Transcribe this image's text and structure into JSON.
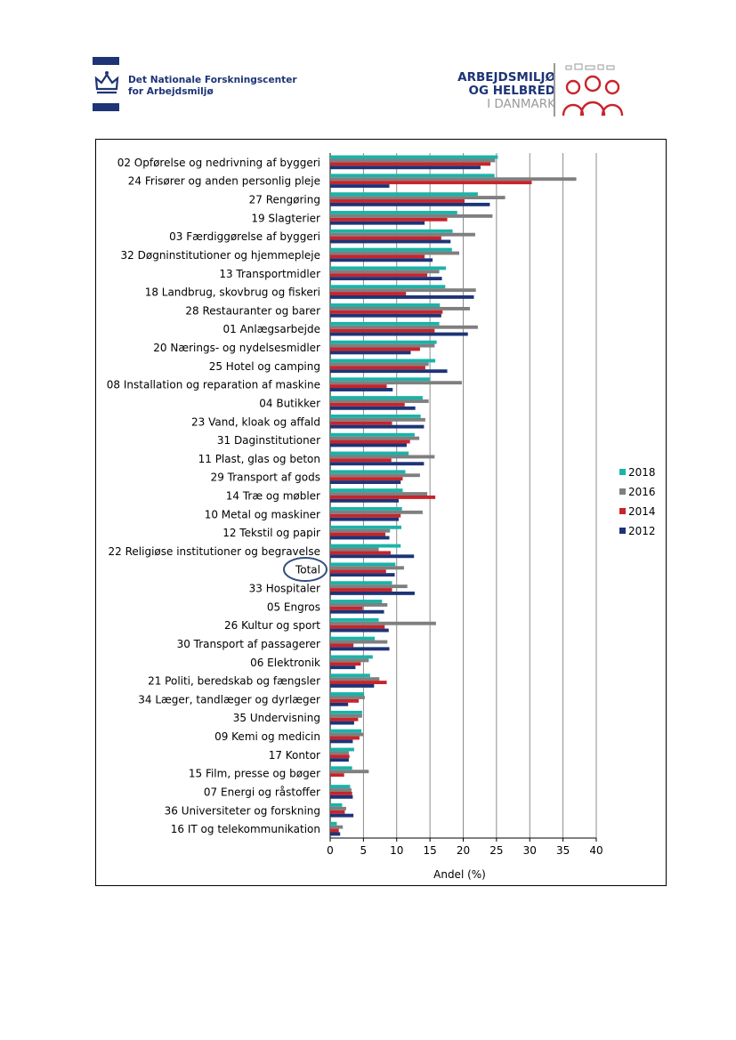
{
  "header": {
    "left_logo": {
      "line1": "Det Nationale Forskningscenter",
      "line2": "for Arbejdsmiljø",
      "stripe_color": "#1d3476"
    },
    "right_logo": {
      "line1": "ARBEJDSMILJØ",
      "line2": "OG HELBRED",
      "line3": "I DANMARK",
      "accent_color": "#c8242b"
    }
  },
  "chart_data": {
    "type": "bar",
    "orientation": "horizontal",
    "xlabel": "Andel (%)",
    "xlim": [
      0,
      40
    ],
    "xticks": [
      0,
      5,
      10,
      15,
      20,
      25,
      30,
      35,
      40
    ],
    "grid": true,
    "legend_position": "right",
    "highlighted_category": "Total",
    "categories": [
      "02 Opførelse og nedrivning af byggeri",
      "24 Frisører og anden personlig pleje",
      "27 Rengøring",
      "19 Slagterier",
      "03 Færdiggørelse af byggeri",
      "32 Døgninstitutioner og hjemmepleje",
      "13 Transportmidler",
      "18 Landbrug, skovbrug og fiskeri",
      "28 Restauranter og barer",
      "01 Anlægsarbejde",
      "20 Nærings- og nydelsesmidler",
      "25 Hotel og camping",
      "08 Installation og reparation af maskine",
      "04 Butikker",
      "23 Vand, kloak og affald",
      "31 Daginstitutioner",
      "11 Plast, glas og beton",
      "29 Transport af gods",
      "14 Træ og møbler",
      "10 Metal og maskiner",
      "12 Tekstil og papir",
      "22 Religiøse institutioner og begravelse",
      "Total",
      "33 Hospitaler",
      "05 Engros",
      "26 Kultur og sport",
      "30 Transport af passagerer",
      "06 Elektronik",
      "21 Politi, beredskab og fængsler",
      "34 Læger, tandlæger og dyrlæger",
      "35 Undervisning",
      "09 Kemi og medicin",
      "17 Kontor",
      "15 Film, presse og bøger",
      "07 Energi og råstoffer",
      "36 Universiteter og forskning",
      "16 IT og telekommunikation"
    ],
    "series": [
      {
        "name": "2018",
        "color": "#1bb3a8",
        "values": [
          25.2,
          24.7,
          22.2,
          19.1,
          18.4,
          18.3,
          17.4,
          17.3,
          16.5,
          16.4,
          16.0,
          15.8,
          15.0,
          13.9,
          13.6,
          12.7,
          11.8,
          11.3,
          10.9,
          10.8,
          10.7,
          10.6,
          9.8,
          9.3,
          7.8,
          7.3,
          6.7,
          6.4,
          6.0,
          5.1,
          4.8,
          4.7,
          3.6,
          3.3,
          3.0,
          1.8,
          1.0
        ]
      },
      {
        "name": "2016",
        "color": "#7f7f7f",
        "values": [
          24.8,
          37.0,
          26.3,
          24.4,
          21.8,
          19.4,
          16.4,
          21.9,
          21.0,
          22.2,
          15.7,
          14.8,
          19.8,
          14.8,
          14.3,
          13.4,
          15.7,
          13.5,
          14.6,
          13.9,
          9.0,
          7.3,
          11.1,
          11.6,
          8.6,
          15.9,
          8.6,
          5.8,
          7.4,
          5.2,
          4.8,
          5.0,
          2.8,
          5.8,
          3.2,
          2.4,
          1.9
        ]
      },
      {
        "name": "2014",
        "color": "#c8242b",
        "values": [
          24.1,
          30.3,
          20.2,
          17.6,
          16.7,
          14.2,
          14.6,
          11.4,
          16.9,
          15.7,
          13.5,
          14.3,
          8.5,
          11.2,
          9.3,
          12.0,
          9.2,
          10.9,
          15.8,
          10.6,
          8.3,
          9.1,
          8.4,
          9.3,
          4.9,
          8.2,
          3.5,
          4.6,
          8.5,
          4.3,
          4.2,
          4.4,
          2.9,
          2.1,
          3.3,
          2.2,
          1.3
        ]
      },
      {
        "name": "2012",
        "color": "#1d3476",
        "values": [
          22.6,
          8.9,
          24.0,
          14.2,
          18.1,
          15.4,
          16.8,
          21.6,
          16.7,
          20.7,
          12.1,
          17.6,
          9.4,
          12.8,
          14.1,
          11.5,
          14.1,
          10.6,
          10.3,
          10.3,
          8.9,
          12.6,
          9.7,
          12.7,
          8.1,
          8.8,
          8.9,
          3.8,
          6.6,
          2.7,
          3.6,
          3.4,
          2.8,
          0,
          3.4,
          3.5,
          1.5
        ]
      }
    ]
  }
}
